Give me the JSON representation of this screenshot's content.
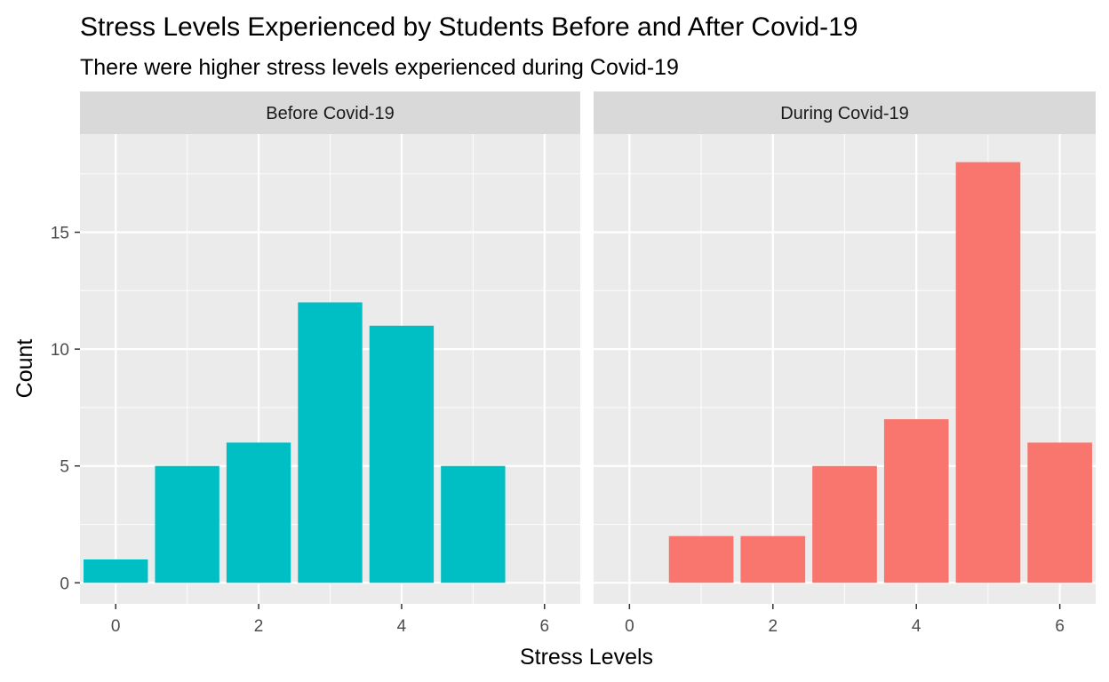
{
  "chart_data": {
    "type": "bar",
    "title": "Stress Levels Experienced by Students Before and After Covid-19",
    "subtitle": "There were higher stress levels experienced during Covid-19",
    "xlabel": "Stress Levels",
    "ylabel": "Count",
    "xlim": [
      -0.5,
      6.5
    ],
    "ylim": [
      0,
      18
    ],
    "x_ticks": [
      0,
      2,
      4,
      6
    ],
    "y_ticks": [
      0,
      5,
      10,
      15
    ],
    "grid": true,
    "legend": "none",
    "panels": [
      {
        "name": "Before Covid-19",
        "color": "#00BFC4",
        "bars": [
          {
            "x": 0,
            "y": 1
          },
          {
            "x": 1,
            "y": 5
          },
          {
            "x": 2,
            "y": 6
          },
          {
            "x": 3,
            "y": 12
          },
          {
            "x": 4,
            "y": 11
          },
          {
            "x": 5,
            "y": 5
          }
        ]
      },
      {
        "name": "During Covid-19",
        "color": "#F8766D",
        "bars": [
          {
            "x": 1,
            "y": 2
          },
          {
            "x": 2,
            "y": 2
          },
          {
            "x": 3,
            "y": 5
          },
          {
            "x": 4,
            "y": 7
          },
          {
            "x": 5,
            "y": 18
          },
          {
            "x": 6,
            "y": 6
          }
        ]
      }
    ],
    "panel_background": "#EBEBEB",
    "strip_background": "#D9D9D9",
    "grid_color": "#FFFFFF"
  }
}
